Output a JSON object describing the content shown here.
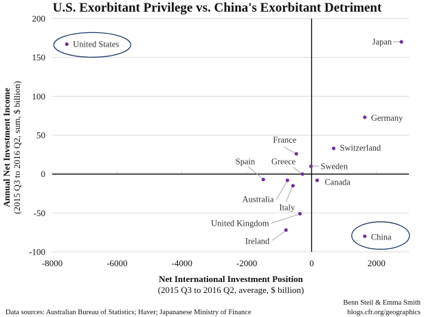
{
  "chart_data": {
    "type": "scatter",
    "title": "U.S. Exorbitant Privilege vs. China's Exorbitant Detriment",
    "xlabel": "Net International Investment Position",
    "xlabel_sub": "(2015 Q3 to 2016 Q2, average, $ billion)",
    "ylabel": "Annual Net Investment Income",
    "ylabel_sub": "(2015 Q3 to 2016 Q2, sum, $ billion)",
    "xlim": [
      -8000,
      3000
    ],
    "ylim": [
      -100,
      200
    ],
    "x_ticks": [
      -8000,
      -6000,
      -4000,
      -2000,
      0,
      2000
    ],
    "y_ticks": [
      -100,
      -50,
      0,
      50,
      100,
      150,
      200
    ],
    "x_tick_labels": [
      "-8000",
      "-6000",
      "-4000",
      "-2000",
      "0",
      "2000"
    ],
    "y_tick_labels": [
      "-100",
      "-50",
      "0",
      "50",
      "100",
      "150",
      "200"
    ],
    "grid": "horizontal",
    "marker_color": "#7030A0",
    "highlight_color": "#1F3864",
    "points": [
      {
        "name": "United States",
        "x": -7550,
        "y": 167,
        "highlight": true
      },
      {
        "name": "Japan",
        "x": 2770,
        "y": 170,
        "highlight": false
      },
      {
        "name": "Germany",
        "x": 1640,
        "y": 73,
        "highlight": false
      },
      {
        "name": "France",
        "x": -470,
        "y": 26,
        "highlight": false
      },
      {
        "name": "Switzerland",
        "x": 680,
        "y": 33,
        "highlight": false
      },
      {
        "name": "Sweden",
        "x": -20,
        "y": 10,
        "highlight": false
      },
      {
        "name": "Greece",
        "x": -280,
        "y": 0,
        "highlight": false
      },
      {
        "name": "Spain",
        "x": -1490,
        "y": -7,
        "highlight": false
      },
      {
        "name": "Australia",
        "x": -745,
        "y": -8,
        "highlight": false
      },
      {
        "name": "Italy",
        "x": -575,
        "y": -15,
        "highlight": false
      },
      {
        "name": "Canada",
        "x": 170,
        "y": -8,
        "highlight": false
      },
      {
        "name": "United Kingdom",
        "x": -360,
        "y": -51,
        "highlight": false
      },
      {
        "name": "Ireland",
        "x": -790,
        "y": -72,
        "highlight": false
      },
      {
        "name": "China",
        "x": 1640,
        "y": -80,
        "highlight": true
      }
    ]
  },
  "footer": {
    "sources": "Data sources: Australian Bureau of Statistics; Haver; Japananese Ministry of Finance",
    "authors": "Benn Steil & Emma Smith",
    "site": "blogs.cfr.org/geographics"
  }
}
